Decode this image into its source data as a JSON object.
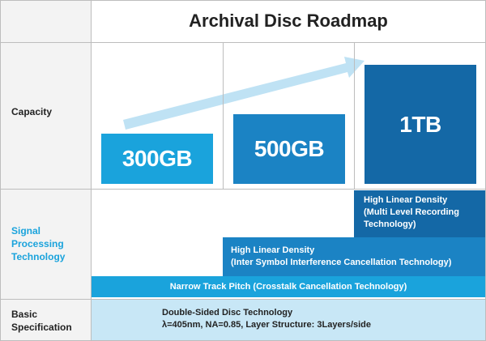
{
  "title": "Archival Disc Roadmap",
  "rows": {
    "capacity": "Capacity",
    "signal": [
      "Signal",
      "Processing",
      "Technology"
    ],
    "basic": [
      "Basic",
      "Specification"
    ]
  },
  "capacities": [
    {
      "label": "300GB"
    },
    {
      "label": "500GB"
    },
    {
      "label": "1TB"
    }
  ],
  "signal_tech": {
    "tier3": [
      "High Linear Density",
      "(Multi Level Recording",
      "Technology)"
    ],
    "tier2": [
      "High Linear Density",
      "(Inter Symbol Interference Cancellation Technology)"
    ],
    "tier1": "Narrow Track Pitch (Crosstalk Cancellation Technology)"
  },
  "basic_spec": {
    "line1": "Double-Sided Disc Technology",
    "line2": "λ=405nm, NA=0.85, Layer Structure: 3Layers/side"
  },
  "colors": {
    "light_blue": "#1aa3dc",
    "mid_blue": "#1b83c4",
    "dark_blue": "#1468a6",
    "arrow": "#bfe2f4",
    "basic_bg": "#c8e7f6"
  }
}
